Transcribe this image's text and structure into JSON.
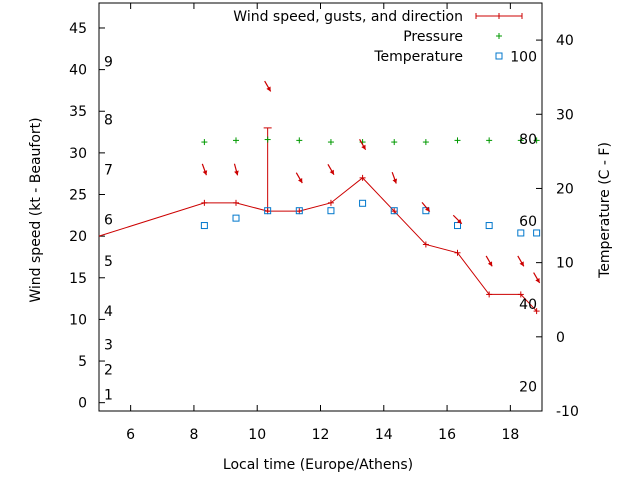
{
  "chart_data": {
    "type": "line",
    "xlabel": "Local time (Europe/Athens)",
    "ylabel": "Wind speed (kt - Beaufort)",
    "y2label": "Temperature (C - F)",
    "xlim": [
      5,
      19
    ],
    "ylim": [
      -1,
      48
    ],
    "y2lim": [
      -10,
      45
    ],
    "x_ticks": [
      6,
      8,
      10,
      12,
      14,
      16,
      18
    ],
    "y_ticks": [
      0,
      5,
      10,
      15,
      20,
      25,
      30,
      35,
      40,
      45
    ],
    "y2_ticks": [
      -10,
      0,
      10,
      20,
      30,
      40
    ],
    "beaufort_labels": [
      {
        "label": "1",
        "wind_kt": 1
      },
      {
        "label": "2",
        "wind_kt": 4
      },
      {
        "label": "3",
        "wind_kt": 7
      },
      {
        "label": "4",
        "wind_kt": 11
      },
      {
        "label": "5",
        "wind_kt": 17
      },
      {
        "label": "6",
        "wind_kt": 22
      },
      {
        "label": "7",
        "wind_kt": 28
      },
      {
        "label": "8",
        "wind_kt": 34
      },
      {
        "label": "9",
        "wind_kt": 41
      }
    ],
    "fahrenheit_labels": [
      {
        "label": "20",
        "temp_c": -6.7
      },
      {
        "label": "40",
        "temp_c": 4.4
      },
      {
        "label": "60",
        "temp_c": 15.6
      },
      {
        "label": "80",
        "temp_c": 26.7
      },
      {
        "label": "100",
        "temp_c": 37.8
      }
    ],
    "legend": {
      "placement": "top-right"
    },
    "series": [
      {
        "name": "Wind speed, gusts, and direction",
        "color": "#cc0000",
        "style": "line-with-plus",
        "x": [
          5.0,
          8.33,
          9.33,
          10.33,
          11.33,
          12.33,
          13.33,
          14.33,
          15.33,
          16.33,
          17.33,
          18.33,
          18.83
        ],
        "y": [
          20,
          24,
          24,
          23,
          23,
          24,
          27,
          23,
          19,
          18,
          13,
          13,
          11
        ],
        "gusts": [
          {
            "x": 10.33,
            "y": 33
          }
        ]
      },
      {
        "name": "Pressure",
        "color": "#009900",
        "style": "plus",
        "x": [
          8.33,
          9.33,
          10.33,
          11.33,
          12.33,
          13.33,
          14.33,
          15.33,
          16.33,
          17.33,
          18.33,
          18.83
        ],
        "y": [
          31.3,
          31.5,
          31.6,
          31.5,
          31.3,
          31.3,
          31.3,
          31.3,
          31.5,
          31.5,
          31.5,
          31.5
        ]
      },
      {
        "name": "Temperature",
        "color": "#0077cc",
        "style": "open-square",
        "x": [
          8.33,
          9.33,
          10.33,
          11.33,
          12.33,
          13.33,
          14.33,
          15.33,
          16.33,
          17.33,
          18.33,
          18.83
        ],
        "y": [
          15.0,
          16.0,
          17.0,
          17.0,
          17.0,
          18.0,
          17.0,
          17.0,
          15.0,
          15.0,
          14.0,
          14.0
        ]
      }
    ],
    "wind_direction_arrows": [
      {
        "x": 8.33,
        "y": 28,
        "dir_deg": 340
      },
      {
        "x": 9.33,
        "y": 28,
        "dir_deg": 345
      },
      {
        "x": 10.33,
        "y": 38,
        "dir_deg": 330
      },
      {
        "x": 11.33,
        "y": 27,
        "dir_deg": 330
      },
      {
        "x": 12.33,
        "y": 28,
        "dir_deg": 330
      },
      {
        "x": 13.33,
        "y": 31,
        "dir_deg": 330
      },
      {
        "x": 14.33,
        "y": 27,
        "dir_deg": 340
      },
      {
        "x": 15.33,
        "y": 23.5,
        "dir_deg": 320
      },
      {
        "x": 16.33,
        "y": 22,
        "dir_deg": 315
      },
      {
        "x": 17.33,
        "y": 17,
        "dir_deg": 330
      },
      {
        "x": 18.33,
        "y": 17,
        "dir_deg": 330
      },
      {
        "x": 18.83,
        "y": 15,
        "dir_deg": 330
      }
    ]
  }
}
